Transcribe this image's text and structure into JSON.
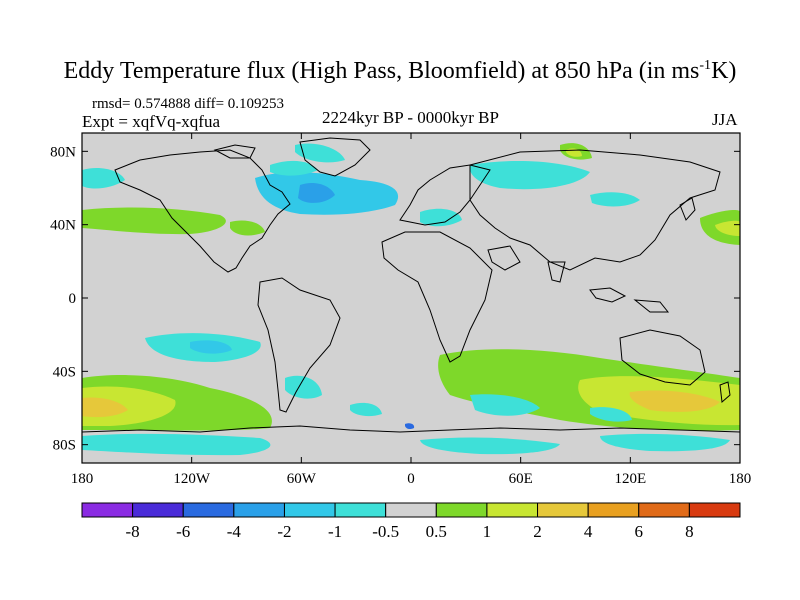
{
  "header": {
    "title_main": "Eddy Temperature flux (High Pass, Bloomfield) at 850 hPa (in ms",
    "title_sup": "-1",
    "title_end": "K)",
    "stats": "rmsd= 0.574888 diff= 0.109253",
    "experiment": "Expt = xqfVq-xqfua",
    "period": "2224kyr BP - 0000kyr BP",
    "season": "JJA"
  },
  "axes": {
    "x_ticks": [
      "180",
      "120W",
      "60W",
      "0",
      "60E",
      "120E",
      "180"
    ],
    "y_ticks": [
      "80N",
      "40N",
      "0",
      "40S",
      "80S"
    ]
  },
  "colorbar": {
    "labels": [
      "-8",
      "-6",
      "-4",
      "-2",
      "-1",
      "-0.5",
      "0.5",
      "1",
      "2",
      "4",
      "6",
      "8"
    ],
    "colors": [
      "#8a2be2",
      "#4a2bd8",
      "#2a6ae0",
      "#2aa0e8",
      "#32c8e8",
      "#3ee0d8",
      "#d2d2d2",
      "#7ed82a",
      "#c8e632",
      "#e6c83a",
      "#e8a020",
      "#e06a18",
      "#d83a10"
    ]
  },
  "map": {
    "background": "#d2d2d2",
    "projection": "cylindrical-equidistant"
  }
}
